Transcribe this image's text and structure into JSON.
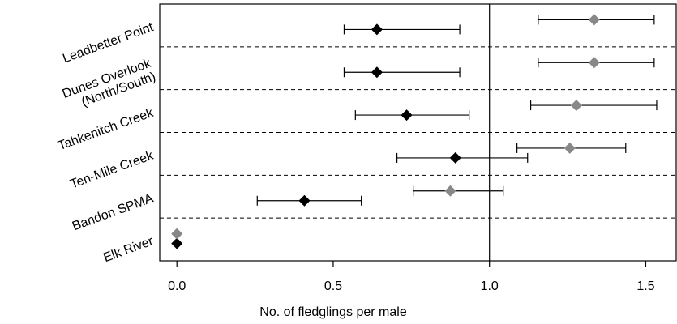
{
  "chart_data": {
    "type": "dot-errorbar",
    "xlabel": "No. of fledglings per male",
    "categories": [
      "Leadbetter Point",
      "Dunes Overlook\n(North/South)",
      "Tahkenitch Creek",
      "Ten-Mile Creek",
      "Bandon SPMA",
      "Elk River"
    ],
    "series": [
      {
        "color": "#000000",
        "values": [
          0.64,
          0.64,
          0.735,
          0.891,
          0.408,
          0
        ],
        "lower": [
          0.535,
          0.535,
          0.571,
          0.704,
          0.257,
          null
        ],
        "upper": [
          0.905,
          0.905,
          0.935,
          1.122,
          0.59,
          null
        ]
      },
      {
        "color": "#888888",
        "values": [
          1.335,
          1.335,
          1.278,
          1.257,
          0.875,
          0
        ],
        "lower": [
          1.156,
          1.156,
          1.132,
          1.088,
          0.756,
          null
        ],
        "upper": [
          1.527,
          1.527,
          1.535,
          1.436,
          1.044,
          null
        ]
      }
    ],
    "xlim": [
      -0.055,
      1.6
    ],
    "xticks": [
      {
        "value": 0,
        "label": "0.0"
      },
      {
        "value": 0.5,
        "label": "0.5"
      },
      {
        "value": 1,
        "label": "1.0"
      },
      {
        "value": 1.5,
        "label": "1.5"
      }
    ],
    "reference_line": 1
  }
}
